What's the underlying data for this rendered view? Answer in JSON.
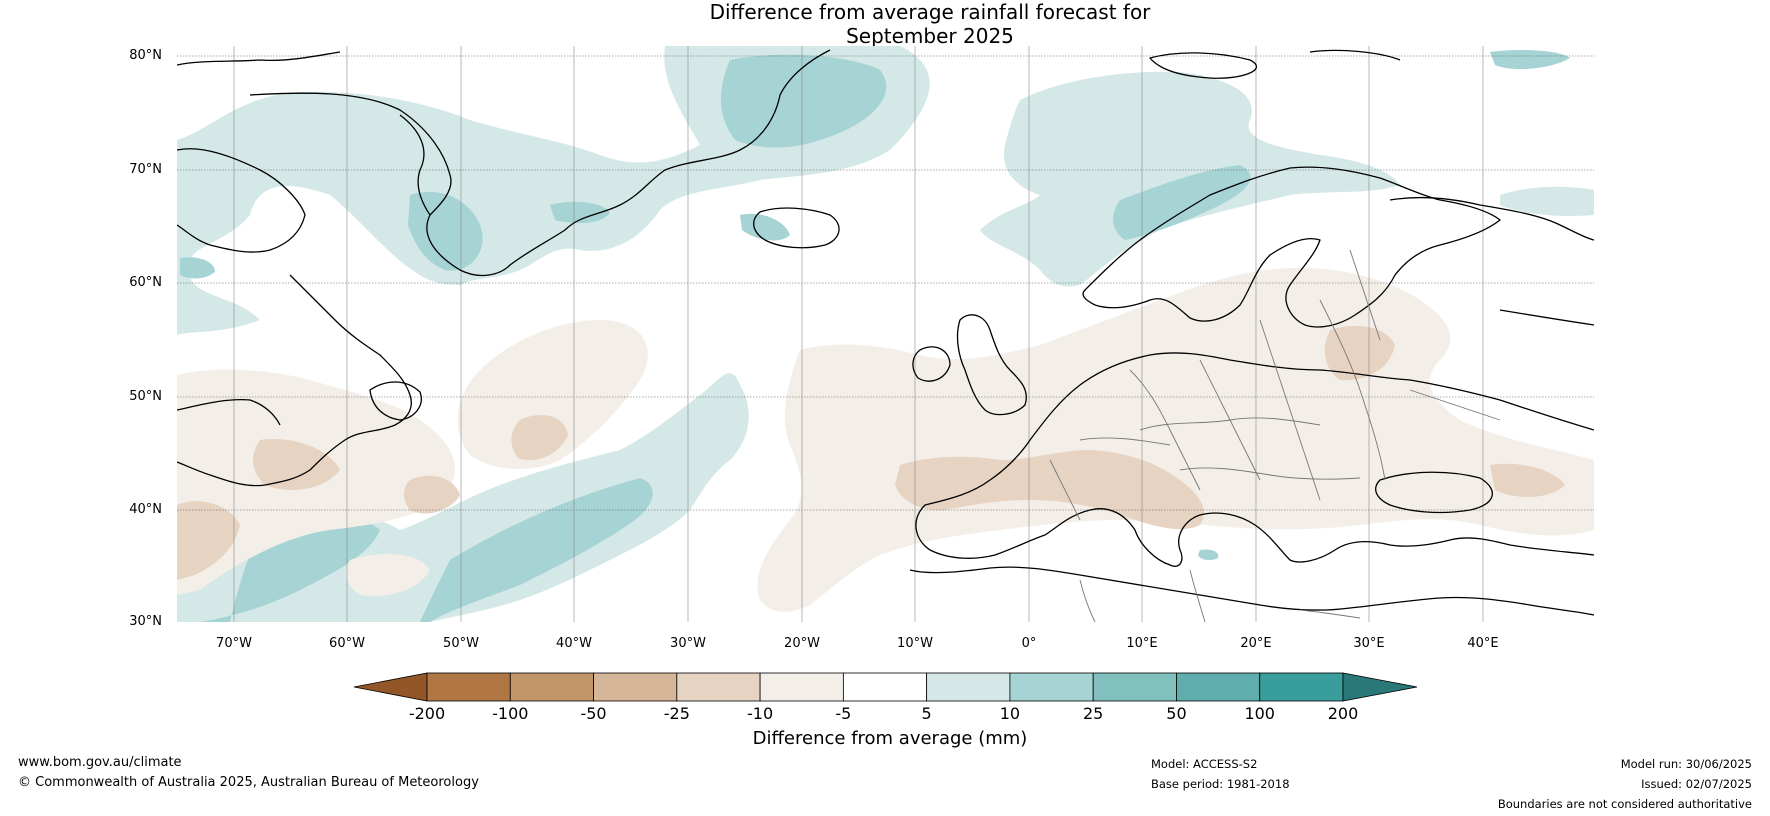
{
  "title": {
    "line1": "Difference from average rainfall forecast for",
    "line2": "September 2025"
  },
  "latitude_labels": [
    "80°N",
    "70°N",
    "60°N",
    "50°N",
    "40°N",
    "30°N"
  ],
  "longitude_labels": [
    "70°W",
    "60°W",
    "50°W",
    "40°W",
    "30°W",
    "20°W",
    "10°W",
    "0°",
    "10°E",
    "20°E",
    "30°E",
    "40°E"
  ],
  "colorbar": {
    "title": "Difference from average (mm)",
    "ticks": [
      "-200",
      "-100",
      "-50",
      "-25",
      "-10",
      "-5",
      "5",
      "10",
      "25",
      "50",
      "100",
      "200"
    ],
    "colors": [
      "#925628",
      "#b07745",
      "#c39669",
      "#d6b699",
      "#e6d3c2",
      "#f4eee9",
      "#ffffff",
      "#d4e8e8",
      "#a6d3d3",
      "#82c0c0",
      "#5fadad",
      "#389d9b",
      "#2a7878"
    ]
  },
  "footer": {
    "website": "www.bom.gov.au/climate",
    "copyright": "© Commonwealth of Australia 2025, Australian Bureau of Meteorology",
    "model": "Model: ACCESS-S2",
    "base_period": "Base period: 1981-2018",
    "model_run": "Model run: 30/06/2025",
    "issued": "Issued: 02/07/2025",
    "disclaimer": "Boundaries are not considered authoritative"
  }
}
